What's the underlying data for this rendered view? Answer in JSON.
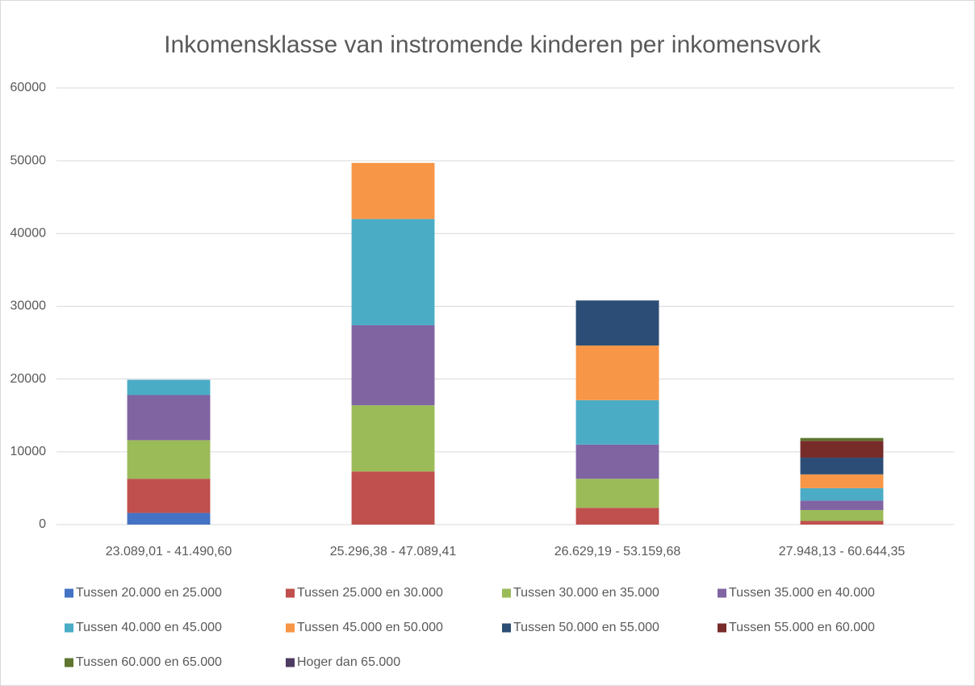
{
  "chart_data": {
    "type": "stacked_bar",
    "title": "Inkomensklasse van instromende kinderen per inkomensvork",
    "categories": [
      "23.089,01 - 41.490,60",
      "25.296,38 - 47.089,41",
      "26.629,19 - 53.159,68",
      "27.948,13 - 60.644,35"
    ],
    "series": [
      {
        "name": "Tussen 20.000 en 25.000",
        "color": "#4472c4",
        "values": [
          1600,
          0,
          0,
          0
        ]
      },
      {
        "name": "Tussen 25.000 en 30.000",
        "color": "#c0504d",
        "values": [
          4700,
          7300,
          2300,
          500
        ]
      },
      {
        "name": "Tussen 30.000 en 35.000",
        "color": "#9bbb59",
        "values": [
          5300,
          9100,
          4000,
          1500
        ]
      },
      {
        "name": "Tussen 35.000 en 40.000",
        "color": "#8064a2",
        "values": [
          6200,
          11000,
          4700,
          1300
        ]
      },
      {
        "name": "Tussen 40.000 en 45.000",
        "color": "#4bacc6",
        "values": [
          2100,
          14600,
          6100,
          1700
        ]
      },
      {
        "name": "Tussen 45.000 en 50.000",
        "color": "#f79646",
        "values": [
          0,
          7700,
          7500,
          1900
        ]
      },
      {
        "name": "Tussen 50.000 en 55.000",
        "color": "#2c4d75",
        "values": [
          0,
          0,
          6200,
          2300
        ]
      },
      {
        "name": "Tussen 55.000 en 60.000",
        "color": "#772c2a",
        "values": [
          0,
          0,
          0,
          2300
        ]
      },
      {
        "name": "Tussen 60.000 en 65.000",
        "color": "#5f7530",
        "values": [
          0,
          0,
          0,
          400
        ]
      },
      {
        "name": "Hoger dan 65.000",
        "color": "#4d3b62",
        "values": [
          0,
          0,
          0,
          0
        ]
      }
    ],
    "ylim": [
      0,
      60000
    ],
    "yticks": [
      0,
      10000,
      20000,
      30000,
      40000,
      50000,
      60000
    ],
    "grid": true,
    "legend": "bottom"
  }
}
